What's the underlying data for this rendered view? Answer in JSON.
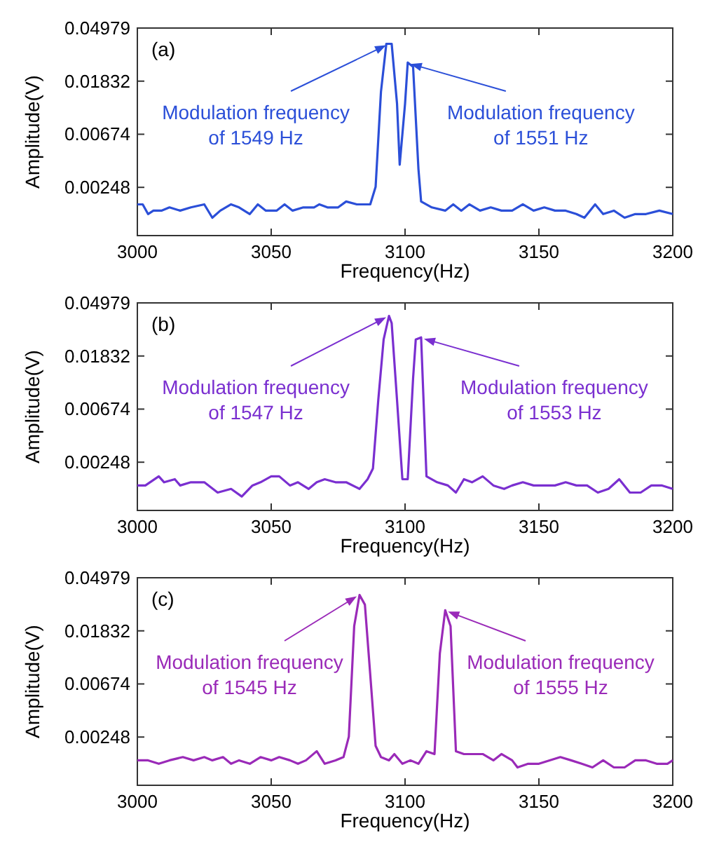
{
  "chart_data": [
    {
      "type": "line",
      "xlabel": "Frequency(Hz)",
      "ylabel": "Amplitude(V)",
      "log": "y",
      "xlim": [
        3000,
        3200
      ],
      "xticks": [
        3000,
        3050,
        3100,
        3150,
        3200
      ],
      "ylim": [
        0.001,
        0.04979
      ],
      "yticks": [
        0.00248,
        0.00674,
        0.01832,
        0.04979
      ],
      "grid": false,
      "marker": "none",
      "line_style": "solid",
      "annotations": [
        "(a)",
        {
          "text": "Modulation frequency\nof 1549 Hz",
          "x": 3094,
          "y": 0.037
        },
        {
          "text": "Modulation frequency\nof 1551 Hz",
          "x": 3101,
          "y": 0.026
        }
      ],
      "series": [
        {
          "color": "#2b4fd8",
          "x": [
            3000,
            3002,
            3004,
            3006,
            3009,
            3012,
            3016,
            3020,
            3025,
            3028,
            3031,
            3035,
            3038,
            3042,
            3045,
            3048,
            3052,
            3055,
            3058,
            3062,
            3066,
            3068,
            3071,
            3075,
            3078,
            3082,
            3087,
            3089,
            3091,
            3093,
            3095,
            3097,
            3098,
            3100,
            3101,
            3103,
            3105,
            3106,
            3110,
            3115,
            3118,
            3121,
            3124,
            3128,
            3132,
            3136,
            3140,
            3144,
            3148,
            3152,
            3156,
            3160,
            3164,
            3167,
            3171,
            3174,
            3178,
            3182,
            3186,
            3190,
            3195,
            3200
          ],
          "values": [
            0.0018,
            0.0018,
            0.0015,
            0.0016,
            0.0016,
            0.0017,
            0.0016,
            0.0017,
            0.0018,
            0.0014,
            0.0016,
            0.0018,
            0.0017,
            0.0015,
            0.0018,
            0.0016,
            0.0016,
            0.0018,
            0.0016,
            0.0017,
            0.0017,
            0.0018,
            0.0017,
            0.0017,
            0.0019,
            0.0018,
            0.0018,
            0.0025,
            0.015,
            0.037,
            0.037,
            0.012,
            0.0038,
            0.012,
            0.026,
            0.024,
            0.0035,
            0.0019,
            0.0017,
            0.0016,
            0.0018,
            0.0016,
            0.0018,
            0.0016,
            0.0017,
            0.0016,
            0.0016,
            0.0018,
            0.0016,
            0.0017,
            0.0016,
            0.0016,
            0.0015,
            0.0014,
            0.0018,
            0.0015,
            0.0016,
            0.0014,
            0.0015,
            0.0015,
            0.0016,
            0.0015
          ]
        }
      ]
    },
    {
      "type": "line",
      "xlabel": "Frequency(Hz)",
      "ylabel": "Amplitude(V)",
      "log": "y",
      "xlim": [
        3000,
        3200
      ],
      "xticks": [
        3000,
        3050,
        3100,
        3150,
        3200
      ],
      "ylim": [
        0.001,
        0.04979
      ],
      "yticks": [
        0.00248,
        0.00674,
        0.01832,
        0.04979
      ],
      "grid": false,
      "marker": "none",
      "line_style": "solid",
      "annotations": [
        "(b)",
        {
          "text": "Modulation frequency\nof 1547 Hz",
          "x": 3094,
          "y": 0.039
        },
        {
          "text": "Modulation frequency\nof 1553 Hz",
          "x": 3106,
          "y": 0.026
        }
      ],
      "series": [
        {
          "color": "#7a2fd0",
          "x": [
            3000,
            3003,
            3008,
            3010,
            3014,
            3016,
            3020,
            3025,
            3030,
            3035,
            3039,
            3043,
            3046,
            3050,
            3053,
            3057,
            3060,
            3064,
            3067,
            3070,
            3074,
            3078,
            3083,
            3086,
            3088,
            3090,
            3092,
            3094,
            3095,
            3097,
            3099,
            3101,
            3103,
            3104,
            3106,
            3108,
            3112,
            3116,
            3119,
            3122,
            3125,
            3129,
            3133,
            3137,
            3140,
            3144,
            3148,
            3152,
            3156,
            3160,
            3164,
            3168,
            3172,
            3176,
            3180,
            3184,
            3188,
            3192,
            3196,
            3200
          ],
          "values": [
            0.0016,
            0.0016,
            0.0019,
            0.0017,
            0.0018,
            0.0016,
            0.0017,
            0.0017,
            0.0014,
            0.0015,
            0.0013,
            0.0016,
            0.0017,
            0.0019,
            0.0019,
            0.0016,
            0.0017,
            0.0015,
            0.0017,
            0.0018,
            0.0017,
            0.0017,
            0.0015,
            0.0018,
            0.0022,
            0.008,
            0.025,
            0.039,
            0.034,
            0.008,
            0.0018,
            0.0018,
            0.012,
            0.025,
            0.026,
            0.0019,
            0.0017,
            0.0016,
            0.0014,
            0.0018,
            0.0017,
            0.0019,
            0.0016,
            0.0015,
            0.0016,
            0.0017,
            0.0016,
            0.0016,
            0.0016,
            0.0017,
            0.0016,
            0.0016,
            0.0014,
            0.0015,
            0.0018,
            0.0014,
            0.0014,
            0.0016,
            0.0016,
            0.0015
          ]
        }
      ]
    },
    {
      "type": "line",
      "xlabel": "Frequency(Hz)",
      "ylabel": "Amplitude(V)",
      "log": "y",
      "xlim": [
        3000,
        3200
      ],
      "xticks": [
        3000,
        3050,
        3100,
        3150,
        3200
      ],
      "ylim": [
        0.001,
        0.04979
      ],
      "yticks": [
        0.00248,
        0.00674,
        0.01832,
        0.04979
      ],
      "grid": false,
      "marker": "none",
      "line_style": "solid",
      "annotations": [
        "(c)",
        {
          "text": "Modulation frequency\nof 1545 Hz",
          "x": 3083,
          "y": 0.036
        },
        {
          "text": "Modulation frequency\nof 1555 Hz",
          "x": 3115,
          "y": 0.027
        }
      ],
      "series": [
        {
          "color": "#9a2ab8",
          "x": [
            3000,
            3004,
            3008,
            3012,
            3017,
            3021,
            3025,
            3028,
            3032,
            3035,
            3038,
            3042,
            3046,
            3050,
            3053,
            3057,
            3060,
            3063,
            3067,
            3070,
            3074,
            3077,
            3079,
            3081,
            3083,
            3085,
            3087,
            3089,
            3091,
            3094,
            3096,
            3099,
            3102,
            3105,
            3108,
            3111,
            3113,
            3115,
            3117,
            3119,
            3122,
            3126,
            3129,
            3133,
            3136,
            3140,
            3142,
            3146,
            3150,
            3154,
            3158,
            3162,
            3166,
            3170,
            3174,
            3178,
            3182,
            3186,
            3190,
            3194,
            3198,
            3200
          ],
          "values": [
            0.0016,
            0.0016,
            0.0015,
            0.0016,
            0.0017,
            0.0016,
            0.0017,
            0.0016,
            0.0017,
            0.0015,
            0.0016,
            0.0015,
            0.0017,
            0.0016,
            0.0017,
            0.0016,
            0.0015,
            0.0016,
            0.0019,
            0.0015,
            0.0016,
            0.0017,
            0.0025,
            0.02,
            0.036,
            0.03,
            0.008,
            0.0021,
            0.0017,
            0.0016,
            0.0018,
            0.0015,
            0.0016,
            0.0015,
            0.0019,
            0.0018,
            0.012,
            0.027,
            0.02,
            0.0019,
            0.0018,
            0.0018,
            0.0018,
            0.0016,
            0.0018,
            0.0016,
            0.0014,
            0.0015,
            0.0015,
            0.0016,
            0.0017,
            0.0016,
            0.0015,
            0.0014,
            0.0016,
            0.0014,
            0.0014,
            0.0016,
            0.0016,
            0.0015,
            0.0015,
            0.0016
          ]
        }
      ]
    }
  ]
}
